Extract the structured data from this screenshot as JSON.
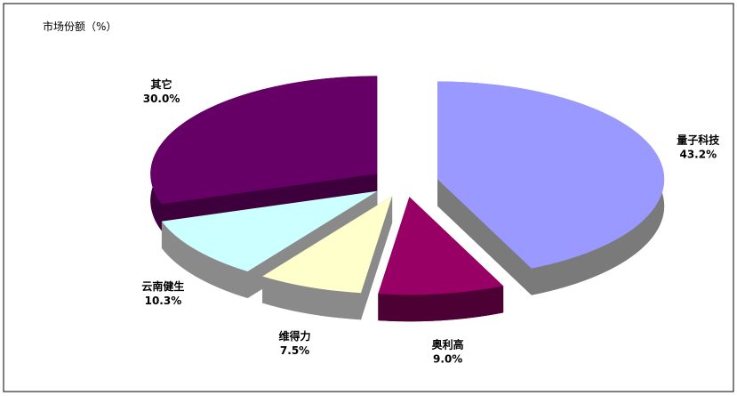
{
  "chart_data": {
    "type": "pie3d",
    "title": "市场份额（%）",
    "categories": [
      "量子科技",
      "奥利高",
      "维得力",
      "云南健生",
      "其它"
    ],
    "values": [
      43.2,
      9.0,
      7.5,
      10.3,
      30.0
    ],
    "value_labels": [
      "43.2%",
      "9.0%",
      "7.5%",
      "10.3%",
      "30.0%"
    ],
    "colors": [
      "#9999ff",
      "#990066",
      "#ffffcc",
      "#ccffff",
      "#660066"
    ],
    "side_colors": [
      "#7a7a7a",
      "#4d0033",
      "#8a8a8a",
      "#8a8a8a",
      "#3d003d"
    ]
  }
}
